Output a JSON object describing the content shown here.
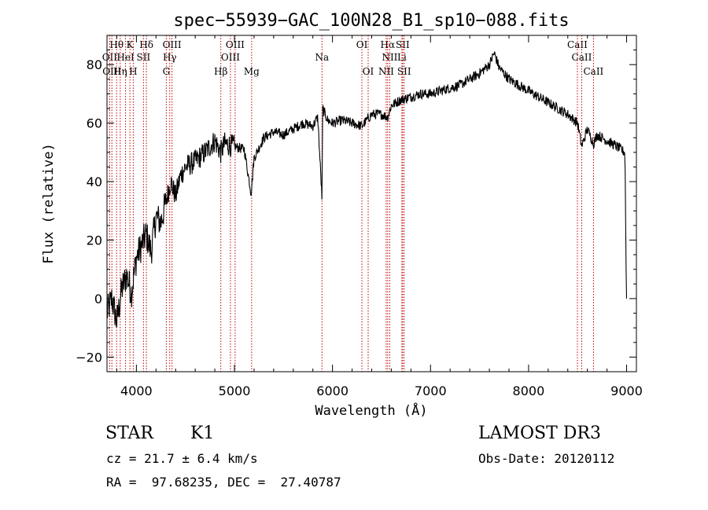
{
  "chart_data": {
    "type": "line",
    "title": "spec−55939−GAC_100N28_B1_sp10−088.fits",
    "xlabel": "Wavelength (Å)",
    "ylabel": "Flux (relative)",
    "xlim": [
      3700,
      9100
    ],
    "ylim": [
      -25,
      90
    ],
    "xticks": [
      4000,
      5000,
      6000,
      7000,
      8000,
      9000
    ],
    "yticks": [
      -20,
      0,
      20,
      40,
      60,
      80
    ],
    "grid": false,
    "series": [
      {
        "name": "flux",
        "color": "#000000",
        "x": [
          3700,
          3750,
          3800,
          3850,
          3900,
          3950,
          4000,
          4050,
          4100,
          4150,
          4200,
          4250,
          4300,
          4350,
          4400,
          4450,
          4500,
          4600,
          4700,
          4800,
          4860,
          4900,
          5000,
          5100,
          5170,
          5200,
          5300,
          5400,
          5500,
          5600,
          5700,
          5800,
          5850,
          5893,
          5900,
          5950,
          6000,
          6100,
          6200,
          6300,
          6400,
          6500,
          6563,
          6600,
          6700,
          6800,
          6900,
          7000,
          7100,
          7200,
          7300,
          7400,
          7500,
          7600,
          7650,
          7700,
          7800,
          7900,
          8000,
          8100,
          8200,
          8300,
          8400,
          8500,
          8542,
          8600,
          8662,
          8700,
          8800,
          8900,
          8980,
          9000
        ],
        "y": [
          -5,
          0,
          -8,
          3,
          8,
          2,
          14,
          18,
          22,
          16,
          28,
          26,
          33,
          40,
          35,
          42,
          45,
          47,
          50,
          54,
          50,
          53,
          52,
          51,
          36,
          48,
          55,
          57,
          56,
          58,
          60,
          59,
          62,
          34,
          65,
          61,
          60,
          61,
          60,
          59,
          63,
          63,
          62,
          66,
          68,
          69,
          70,
          70,
          71,
          72,
          73,
          75,
          77,
          80,
          84,
          79,
          75,
          73,
          71,
          69,
          67,
          65,
          63,
          60,
          52,
          58,
          53,
          56,
          54,
          52,
          50,
          0
        ]
      }
    ],
    "line_ids": [
      {
        "label": "Hθ",
        "x": 3798,
        "row": 0
      },
      {
        "label": "K",
        "x": 3934,
        "row": 0
      },
      {
        "label": "Hδ",
        "x": 4102,
        "row": 0
      },
      {
        "label": "OIII",
        "x": 4363,
        "row": 0
      },
      {
        "label": "OIII",
        "x": 5007,
        "row": 0
      },
      {
        "label": "OI",
        "x": 6300,
        "row": 0
      },
      {
        "label": "Hα",
        "x": 6563,
        "row": 0
      },
      {
        "label": "SII",
        "x": 6716,
        "row": 0
      },
      {
        "label": "CaII",
        "x": 8498,
        "row": 0
      },
      {
        "label": "OII",
        "x": 3727,
        "row": 1
      },
      {
        "label": "HeI",
        "x": 3889,
        "row": 1
      },
      {
        "label": "SII",
        "x": 4072,
        "row": 1
      },
      {
        "label": "Hγ",
        "x": 4340,
        "row": 1
      },
      {
        "label": "OIII",
        "x": 4959,
        "row": 1
      },
      {
        "label": "Na",
        "x": 5893,
        "row": 1
      },
      {
        "label": "NII",
        "x": 6584,
        "row": 1
      },
      {
        "label": "Li",
        "x": 6708,
        "row": 1
      },
      {
        "label": "CaII",
        "x": 8542,
        "row": 1
      },
      {
        "label": "OIII",
        "x": 3750,
        "row": 2
      },
      {
        "label": "Hη",
        "x": 3835,
        "row": 2
      },
      {
        "label": "H",
        "x": 3968,
        "row": 2
      },
      {
        "label": "G",
        "x": 4305,
        "row": 2
      },
      {
        "label": "Hβ",
        "x": 4861,
        "row": 2
      },
      {
        "label": "Mg",
        "x": 5175,
        "row": 2
      },
      {
        "label": "OI",
        "x": 6364,
        "row": 2
      },
      {
        "label": "NII",
        "x": 6548,
        "row": 2
      },
      {
        "label": "SII",
        "x": 6731,
        "row": 2
      },
      {
        "label": "CaII",
        "x": 8662,
        "row": 2
      }
    ]
  },
  "info": {
    "class": "STAR",
    "subclass": "K1",
    "survey": "LAMOST DR3",
    "cz": "cz = 21.7 ± 6.4 km/s",
    "obsdate": "Obs-Date: 20120112",
    "radec": "RA =  97.68235, DEC =  27.40787"
  }
}
